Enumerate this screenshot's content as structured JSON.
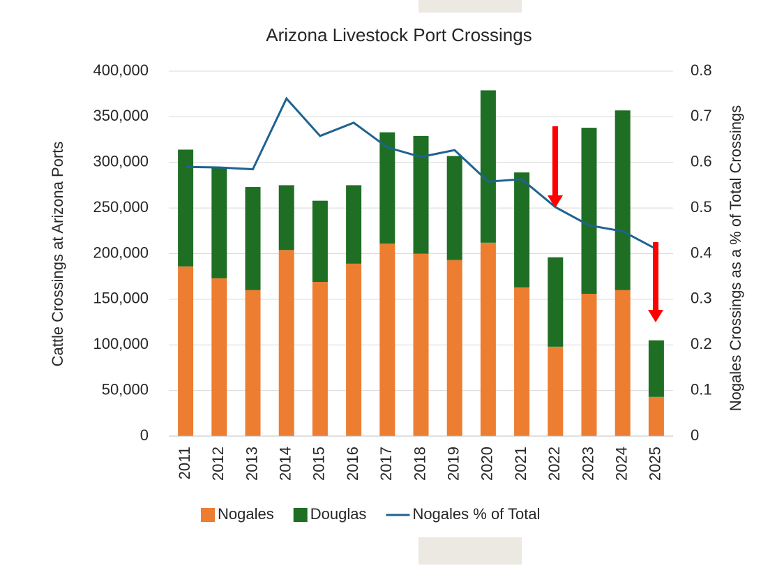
{
  "chart_data": {
    "type": "bar",
    "stacked": true,
    "title": "Arizona Livestock Port Crossings",
    "y_label": "Cattle Crossings at Arizona Ports",
    "y2_label": "Nogales Crossings as a % of Total Crossings",
    "categories": [
      "2011",
      "2012",
      "2013",
      "2014",
      "2015",
      "2016",
      "2017",
      "2018",
      "2019",
      "2020",
      "2021",
      "2022",
      "2023",
      "2024",
      "2025"
    ],
    "series": [
      {
        "name": "Nogales",
        "type": "bar",
        "color": "#ed7d31",
        "values": [
          186000,
          173000,
          160000,
          204000,
          169000,
          189000,
          211000,
          200000,
          193000,
          212000,
          163000,
          98000,
          156000,
          160000,
          43000
        ]
      },
      {
        "name": "Douglas",
        "type": "bar",
        "color": "#1e6e23",
        "values": [
          128000,
          122000,
          113000,
          71000,
          89000,
          86000,
          122000,
          129000,
          114000,
          167000,
          126000,
          98000,
          182000,
          197000,
          62000
        ]
      },
      {
        "name": "Nogales % of Total",
        "type": "line",
        "axis": "y2",
        "color": "#1f6391",
        "values": [
          0.59,
          0.589,
          0.585,
          0.74,
          0.658,
          0.687,
          0.633,
          0.612,
          0.627,
          0.558,
          0.563,
          0.502,
          0.462,
          0.449,
          0.41
        ]
      }
    ],
    "ylim": [
      0,
      400000
    ],
    "yticks": [
      0,
      {
        "value": 50000,
        "label": "50,000"
      },
      {
        "value": 100000,
        "label": "100,000"
      },
      {
        "value": 150000,
        "label": "150,000"
      },
      {
        "value": 200000,
        "label": "200,000"
      },
      {
        "value": 250000,
        "label": "250,000"
      },
      {
        "value": 300000,
        "label": "300,000"
      },
      {
        "value": 350000,
        "label": "350,000"
      },
      {
        "value": 400000,
        "label": "400,000"
      }
    ],
    "y2lim": [
      0,
      0.8
    ],
    "y2ticks": [
      0,
      0.1,
      0.2,
      0.3,
      0.4,
      0.5,
      0.6,
      0.7,
      0.8
    ],
    "grid": true,
    "legend": "bottom"
  }
}
